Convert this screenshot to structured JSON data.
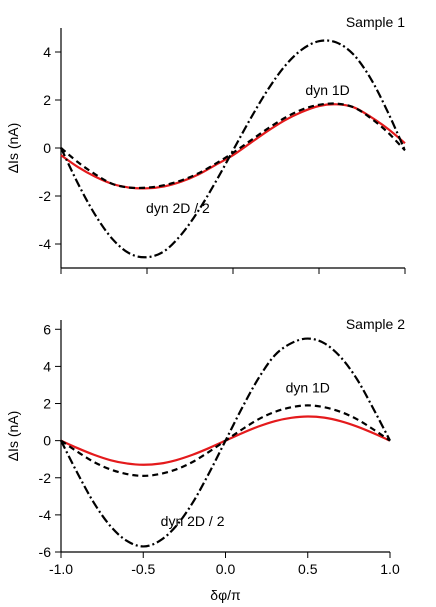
{
  "chart_data": [
    {
      "type": "line",
      "panel_label": "Sample 1",
      "xlabel": "",
      "ylabel": "ΔIs (nA)",
      "xlim": [
        -1.0,
        1.0
      ],
      "ylim": [
        -5.0,
        5.0
      ],
      "x_ticks": [
        -1.0,
        -0.5,
        0.0,
        0.5,
        1.0
      ],
      "x_tick_labels": [],
      "y_ticks": [
        -4,
        -2,
        0,
        2,
        4
      ],
      "y_tick_labels": [
        "-4",
        "-2",
        "0",
        "2",
        "4"
      ],
      "grid": false,
      "annotations": [
        {
          "text": "dyn 1D",
          "x": 0.55,
          "y": 2.2
        },
        {
          "text": "dyn 2D / 2",
          "x": -0.32,
          "y": -2.7
        }
      ],
      "x": [
        -1.0,
        -0.9,
        -0.8,
        -0.7,
        -0.6,
        -0.5,
        -0.4,
        -0.3,
        -0.2,
        -0.1,
        0.0,
        0.1,
        0.2,
        0.3,
        0.4,
        0.5,
        0.6,
        0.7,
        0.8,
        0.9,
        1.0
      ],
      "series": [
        {
          "name": "",
          "color": "#e41a1c",
          "dash": "solid",
          "values": [
            -0.3,
            -0.8,
            -1.2,
            -1.5,
            -1.65,
            -1.68,
            -1.6,
            -1.4,
            -1.1,
            -0.7,
            -0.3,
            0.2,
            0.7,
            1.15,
            1.5,
            1.75,
            1.82,
            1.7,
            1.3,
            0.8,
            0.2
          ]
        },
        {
          "name": "",
          "color": "#000000",
          "dash": "dashed",
          "values": [
            0.0,
            -0.6,
            -1.1,
            -1.5,
            -1.65,
            -1.65,
            -1.55,
            -1.35,
            -1.05,
            -0.65,
            -0.2,
            0.3,
            0.8,
            1.25,
            1.6,
            1.8,
            1.85,
            1.7,
            1.25,
            0.65,
            -0.1
          ]
        },
        {
          "name": "",
          "color": "#000000",
          "dash": "dashdot",
          "values": [
            0.0,
            -1.5,
            -2.8,
            -3.8,
            -4.4,
            -4.55,
            -4.3,
            -3.6,
            -2.6,
            -1.4,
            -0.1,
            1.2,
            2.4,
            3.4,
            4.1,
            4.45,
            4.4,
            3.9,
            2.9,
            1.5,
            -0.1
          ]
        }
      ]
    },
    {
      "type": "line",
      "panel_label": "Sample 2",
      "xlabel": "δφ/π",
      "ylabel": "ΔIs (nA)",
      "xlim": [
        -1.0,
        1.0
      ],
      "ylim": [
        -6.0,
        6.5
      ],
      "x_ticks": [
        -1.0,
        -0.5,
        0.0,
        0.5,
        1.0
      ],
      "x_tick_labels": [
        "-1.0",
        "-0.5",
        "0.0",
        "0.5",
        "1.0"
      ],
      "y_ticks": [
        -6,
        -4,
        -2,
        0,
        2,
        4,
        6
      ],
      "y_tick_labels": [
        "-6",
        "-4",
        "-2",
        "0",
        "2",
        "4",
        "6"
      ],
      "grid": false,
      "annotations": [
        {
          "text": "dyn 1D",
          "x": 0.5,
          "y": 2.6
        },
        {
          "text": "dyn 2D / 2",
          "x": -0.2,
          "y": -4.6
        }
      ],
      "x": [
        -1.0,
        -0.9,
        -0.8,
        -0.7,
        -0.6,
        -0.5,
        -0.4,
        -0.3,
        -0.2,
        -0.1,
        0.0,
        0.1,
        0.2,
        0.3,
        0.4,
        0.5,
        0.6,
        0.7,
        0.8,
        0.9,
        1.0
      ],
      "series": [
        {
          "name": "",
          "color": "#e41a1c",
          "dash": "solid",
          "values": [
            0.0,
            -0.4,
            -0.76,
            -1.05,
            -1.23,
            -1.3,
            -1.24,
            -1.05,
            -0.76,
            -0.4,
            0.0,
            0.4,
            0.76,
            1.05,
            1.23,
            1.3,
            1.24,
            1.05,
            0.76,
            0.4,
            0.0
          ]
        },
        {
          "name": "",
          "color": "#000000",
          "dash": "dashed",
          "values": [
            0.0,
            -0.6,
            -1.15,
            -1.55,
            -1.8,
            -1.9,
            -1.8,
            -1.55,
            -1.15,
            -0.6,
            0.0,
            0.6,
            1.15,
            1.55,
            1.8,
            1.9,
            1.8,
            1.55,
            1.15,
            0.6,
            0.0
          ]
        },
        {
          "name": "",
          "color": "#000000",
          "dash": "dashdot",
          "values": [
            0.0,
            -1.75,
            -3.35,
            -4.6,
            -5.4,
            -5.7,
            -5.4,
            -4.6,
            -3.35,
            -1.75,
            0.0,
            1.75,
            3.35,
            4.6,
            5.25,
            5.5,
            5.25,
            4.5,
            3.3,
            1.7,
            0.0
          ]
        }
      ]
    }
  ]
}
